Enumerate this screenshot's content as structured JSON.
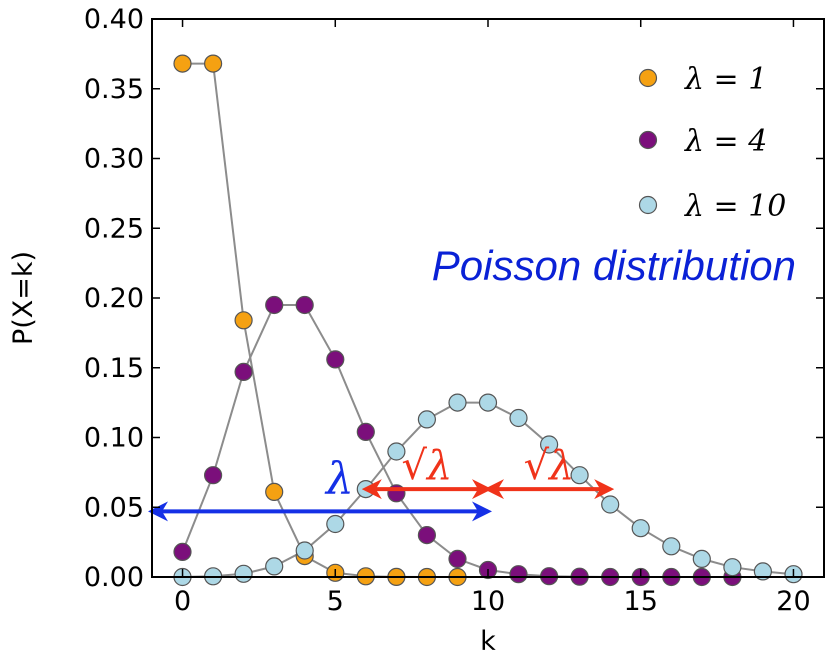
{
  "chart_data": {
    "type": "scatter",
    "x_label": "k",
    "y_label": "P(X=k)",
    "xlim": [
      -1,
      21
    ],
    "ylim": [
      0,
      0.4
    ],
    "x_ticks": [
      0,
      5,
      10,
      15,
      20
    ],
    "x_tick_labels": [
      "0",
      "5",
      "10",
      "15",
      "20"
    ],
    "y_ticks": [
      0,
      0.05,
      0.1,
      0.15,
      0.2,
      0.25,
      0.3,
      0.35,
      0.4
    ],
    "y_tick_labels": [
      "0.00",
      "0.05",
      "0.10",
      "0.15",
      "0.20",
      "0.25",
      "0.30",
      "0.35",
      "0.40"
    ],
    "grid": false,
    "legend_position": "top-right",
    "series": [
      {
        "name": "λ = 1",
        "color": "#f5a112",
        "x": [
          0,
          1,
          2,
          3,
          4,
          5,
          6,
          7,
          8,
          9
        ],
        "y": [
          0.368,
          0.368,
          0.184,
          0.061,
          0.015,
          0.003,
          0.0005,
          0.0001,
          0.0,
          0.0
        ]
      },
      {
        "name": "λ = 4",
        "color": "#7b0f7b",
        "x": [
          0,
          1,
          2,
          3,
          4,
          5,
          6,
          7,
          8,
          9,
          10,
          11,
          12,
          13,
          14,
          15,
          16,
          17,
          18
        ],
        "y": [
          0.018,
          0.073,
          0.147,
          0.195,
          0.195,
          0.156,
          0.104,
          0.06,
          0.03,
          0.013,
          0.005,
          0.002,
          0.0006,
          0.0002,
          0.0,
          0.0,
          0.0,
          0.0,
          0.0
        ]
      },
      {
        "name": "λ = 10",
        "color": "#add8e6",
        "x": [
          0,
          1,
          2,
          3,
          4,
          5,
          6,
          7,
          8,
          9,
          10,
          11,
          12,
          13,
          14,
          15,
          16,
          17,
          18,
          19,
          20
        ],
        "y": [
          0.0,
          0.0005,
          0.0023,
          0.0076,
          0.019,
          0.038,
          0.063,
          0.09,
          0.113,
          0.125,
          0.125,
          0.114,
          0.095,
          0.073,
          0.052,
          0.035,
          0.022,
          0.013,
          0.007,
          0.004,
          0.002
        ]
      }
    ],
    "annotations": {
      "title_text": "Poisson distribution",
      "title_color": "#0a21d6",
      "lambda_symbol": "λ",
      "sqrt_symbol": "√λ",
      "blue_arrow": {
        "from_x": -1,
        "to_x": 10,
        "y": 0.047,
        "color": "#1530e6"
      },
      "red_arrows": [
        {
          "from_x": 6,
          "to_x": 10,
          "y": 0.063,
          "color": "#f0331a"
        },
        {
          "from_x": 10,
          "to_x": 14,
          "y": 0.063,
          "color": "#f0331a"
        }
      ]
    }
  }
}
